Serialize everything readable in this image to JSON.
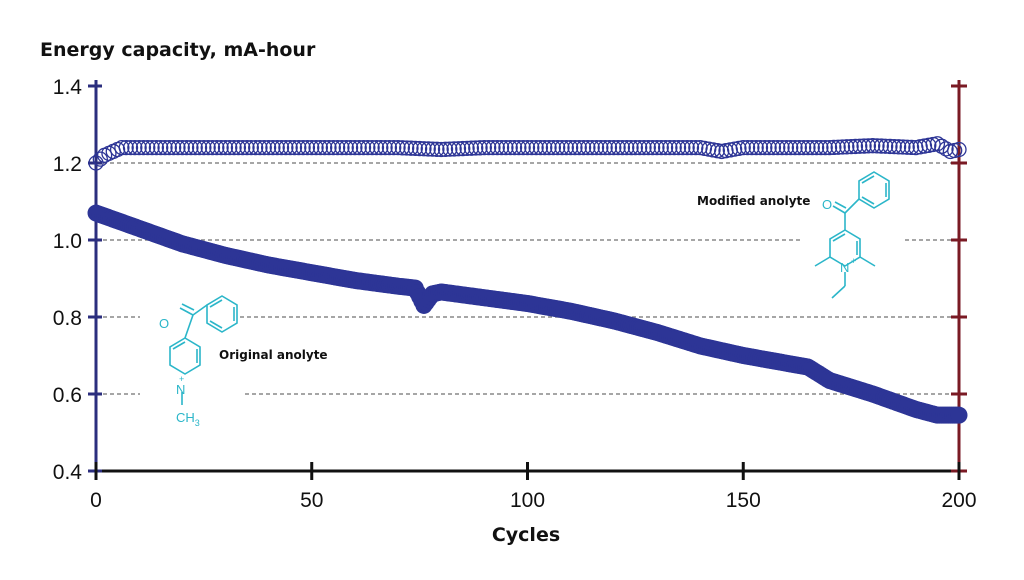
{
  "chart_data": {
    "type": "scatter",
    "ylabel": "Energy capacity, mA-hour",
    "xlabel": "Cycles",
    "xlim": [
      0,
      200
    ],
    "ylim": [
      0.4,
      1.4
    ],
    "xticks": [
      "0",
      "50",
      "100",
      "150",
      "200"
    ],
    "yticks": [
      "0.4",
      "0.6",
      "0.8",
      "1.0",
      "1.2",
      "1.4"
    ],
    "grid": "dashed horizontal lines at 0.6, 0.8, 1.0, 1.2",
    "colors": {
      "axis_left": "#2b2e7e",
      "axis_right": "#7a1a24",
      "series": "#2d3596",
      "grid": "#888888",
      "molecule": "#2bb6c9"
    },
    "series": [
      {
        "name": "Modified anolyte",
        "marker": "open-circle",
        "x": [
          0,
          2,
          4,
          6,
          10,
          20,
          30,
          40,
          50,
          60,
          70,
          80,
          90,
          100,
          110,
          120,
          130,
          140,
          145,
          150,
          155,
          160,
          170,
          180,
          190,
          195,
          198,
          200
        ],
        "y": [
          1.2,
          1.22,
          1.23,
          1.24,
          1.24,
          1.24,
          1.24,
          1.24,
          1.24,
          1.24,
          1.24,
          1.235,
          1.24,
          1.24,
          1.24,
          1.24,
          1.24,
          1.24,
          1.23,
          1.24,
          1.24,
          1.24,
          1.24,
          1.245,
          1.24,
          1.25,
          1.23,
          1.235
        ]
      },
      {
        "name": "Original anolyte",
        "marker": "filled-circle",
        "x": [
          0,
          5,
          10,
          20,
          30,
          40,
          50,
          60,
          70,
          74,
          76,
          78,
          80,
          90,
          100,
          110,
          120,
          130,
          140,
          150,
          160,
          165,
          170,
          180,
          190,
          195,
          200
        ],
        "y": [
          1.07,
          1.05,
          1.03,
          0.99,
          0.96,
          0.935,
          0.915,
          0.895,
          0.88,
          0.875,
          0.83,
          0.86,
          0.865,
          0.85,
          0.835,
          0.815,
          0.79,
          0.76,
          0.725,
          0.7,
          0.68,
          0.67,
          0.635,
          0.6,
          0.56,
          0.545,
          0.545
        ]
      }
    ],
    "annotations": [
      {
        "text": "Modified anolyte"
      },
      {
        "text": "Original anolyte"
      }
    ]
  },
  "molecules": {
    "carbonyl_o": "O",
    "nitrogen": "N",
    "charge": "+",
    "methyl": "CH",
    "methyl_sub": "3"
  }
}
